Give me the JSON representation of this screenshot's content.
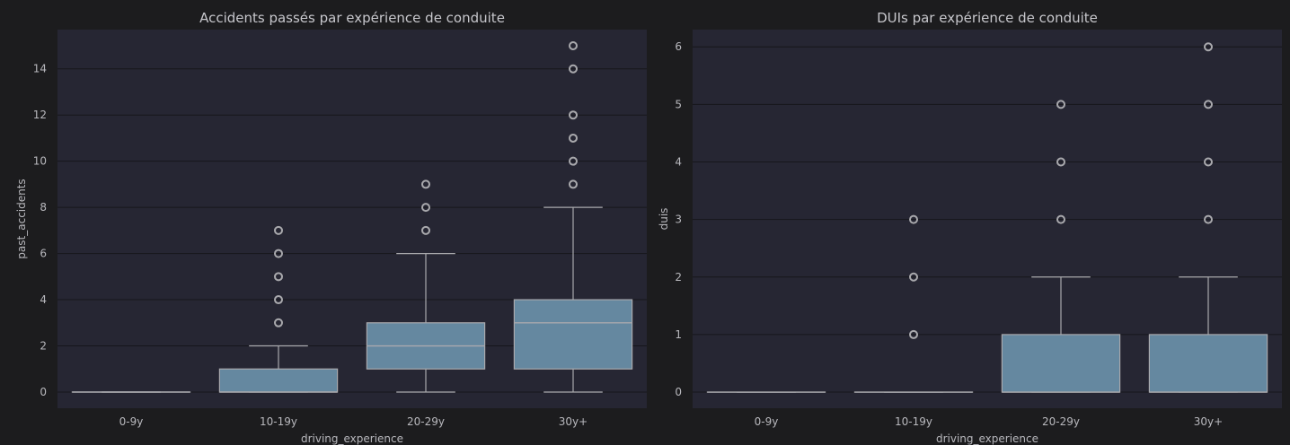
{
  "colors": {
    "figure_background": "#1c1c1e",
    "axes_background": "#262633",
    "grid": "#16161b",
    "box_fill": "#6588a0",
    "box_edge": "#a9a9ad",
    "text": "#b8b8bd"
  },
  "chart_data": [
    {
      "type": "box",
      "title": "Accidents passés par expérience de conduite",
      "xlabel": "driving_experience",
      "ylabel": "past_accidents",
      "categories": [
        "0-9y",
        "10-19y",
        "20-29y",
        "30y+"
      ],
      "ylim": [
        -0.7,
        15.7
      ],
      "yticks": [
        0,
        2,
        4,
        6,
        8,
        10,
        12,
        14
      ],
      "grid": true,
      "boxes": [
        {
          "category": "0-9y",
          "whisker_low": 0,
          "q1": 0,
          "median": 0,
          "q3": 0,
          "whisker_high": 0,
          "outliers": []
        },
        {
          "category": "10-19y",
          "whisker_low": 0,
          "q1": 0,
          "median": 0,
          "q3": 1,
          "whisker_high": 2,
          "outliers": [
            3,
            4,
            5,
            6,
            7
          ]
        },
        {
          "category": "20-29y",
          "whisker_low": 0,
          "q1": 1,
          "median": 2,
          "q3": 3,
          "whisker_high": 6,
          "outliers": [
            7,
            8,
            9
          ]
        },
        {
          "category": "30y+",
          "whisker_low": 0,
          "q1": 1,
          "median": 3,
          "q3": 4,
          "whisker_high": 8,
          "outliers": [
            9,
            10,
            11,
            12,
            14,
            15
          ]
        }
      ]
    },
    {
      "type": "box",
      "title": "DUIs par expérience de conduite",
      "xlabel": "driving_experience",
      "ylabel": "duis",
      "categories": [
        "0-9y",
        "10-19y",
        "20-29y",
        "30y+"
      ],
      "ylim": [
        -0.28,
        6.3
      ],
      "yticks": [
        0,
        1,
        2,
        3,
        4,
        5,
        6
      ],
      "grid": true,
      "boxes": [
        {
          "category": "0-9y",
          "whisker_low": 0,
          "q1": 0,
          "median": 0,
          "q3": 0,
          "whisker_high": 0,
          "outliers": []
        },
        {
          "category": "10-19y",
          "whisker_low": 0,
          "q1": 0,
          "median": 0,
          "q3": 0,
          "whisker_high": 0,
          "outliers": [
            1,
            2,
            3
          ]
        },
        {
          "category": "20-29y",
          "whisker_low": 0,
          "q1": 0,
          "median": 0,
          "q3": 1,
          "whisker_high": 2,
          "outliers": [
            3,
            4,
            5
          ]
        },
        {
          "category": "30y+",
          "whisker_low": 0,
          "q1": 0,
          "median": 0,
          "q3": 1,
          "whisker_high": 2,
          "outliers": [
            3,
            4,
            5,
            6
          ]
        }
      ]
    }
  ]
}
